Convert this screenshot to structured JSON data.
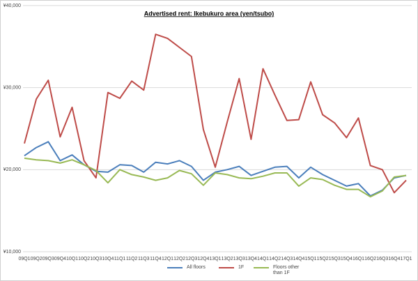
{
  "chart_data": {
    "type": "line",
    "title": "Advertised rent: Ikebukuro area (yen/tsubo)",
    "categories": [
      "09Q1",
      "09Q2",
      "09Q3",
      "09Q4",
      "10Q1",
      "10Q2",
      "10Q3",
      "10Q4",
      "11Q1",
      "11Q2",
      "11Q3",
      "11Q4",
      "12Q1",
      "12Q2",
      "12Q3",
      "12Q4",
      "13Q1",
      "13Q2",
      "13Q3",
      "13Q4",
      "14Q1",
      "14Q2",
      "14Q3",
      "14Q4",
      "15Q1",
      "15Q2",
      "15Q3",
      "15Q4",
      "16Q1",
      "16Q2",
      "16Q3",
      "16Q4",
      "17Q1"
    ],
    "series": [
      {
        "name": "All floors",
        "color": "#4a7ebb",
        "values": [
          21700,
          22700,
          23400,
          21100,
          21800,
          20600,
          19800,
          19700,
          20600,
          20500,
          19700,
          20900,
          20700,
          21100,
          20400,
          18700,
          19700,
          20000,
          20400,
          19300,
          19800,
          20300,
          20400,
          19000,
          20300,
          19400,
          18700,
          18000,
          18300,
          16800,
          17500,
          19000,
          19300
        ]
      },
      {
        "name": "1F",
        "color": "#be4b48",
        "values": [
          23200,
          28600,
          30900,
          24000,
          27600,
          21100,
          19000,
          29400,
          28700,
          30800,
          29700,
          36500,
          36000,
          34900,
          33800,
          24900,
          20300,
          25800,
          31100,
          23700,
          32300,
          29100,
          26000,
          26100,
          30700,
          26700,
          25700,
          23900,
          26300,
          20500,
          20000,
          17200,
          18700
        ]
      },
      {
        "name": "Floors other than 1F",
        "color": "#98b954",
        "values": [
          21400,
          21200,
          21100,
          20800,
          21200,
          20600,
          19900,
          18400,
          20000,
          19400,
          19100,
          18700,
          19000,
          19900,
          19500,
          18100,
          19600,
          19400,
          19000,
          18900,
          19200,
          19600,
          19600,
          18000,
          19000,
          18800,
          18100,
          17600,
          17600,
          16700,
          17400,
          19100,
          19300
        ]
      }
    ],
    "ylim": [
      10000,
      40000
    ],
    "yticks": [
      {
        "value": 10000,
        "label": "¥10,000"
      },
      {
        "value": 20000,
        "label": "¥20,000"
      },
      {
        "value": 30000,
        "label": "¥30,000"
      },
      {
        "value": 40000,
        "label": "¥40,000"
      }
    ],
    "grid": true
  }
}
